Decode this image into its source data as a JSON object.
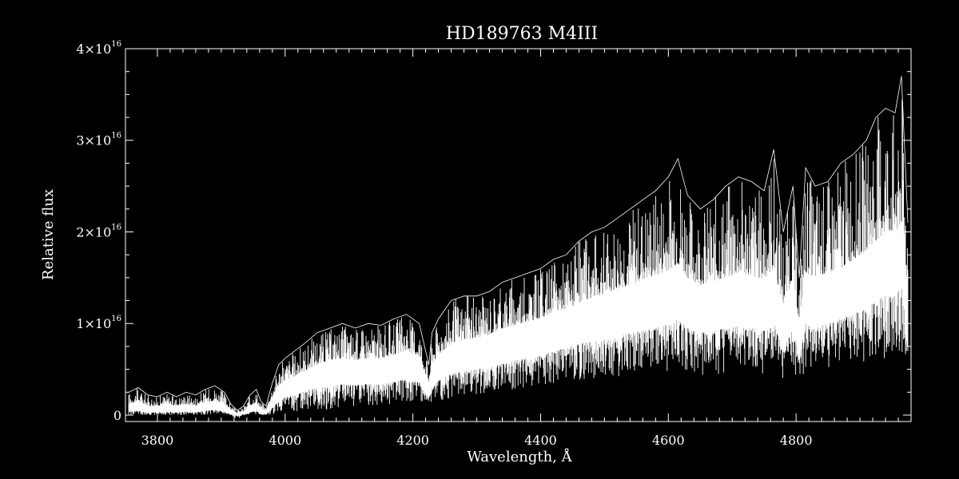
{
  "chart_data": {
    "type": "line",
    "title": "HD189763   M4III",
    "xlabel": "Wavelength, Å",
    "ylabel": "Relative flux",
    "xlim": [
      3750,
      4980
    ],
    "ylim": [
      -0.07,
      4.0
    ],
    "y_scale_note": "×10^16",
    "grid": false,
    "legend": "none",
    "line_color": "#ffffff",
    "background": "#000000",
    "x_ticks": [
      {
        "value": 3800,
        "label": "3800"
      },
      {
        "value": 4000,
        "label": "4000"
      },
      {
        "value": 4200,
        "label": "4200"
      },
      {
        "value": 4400,
        "label": "4400"
      },
      {
        "value": 4600,
        "label": "4600"
      },
      {
        "value": 4800,
        "label": "4800"
      }
    ],
    "y_ticks": [
      {
        "value": 0,
        "mant": "0",
        "exp": ""
      },
      {
        "value": 1,
        "mant": "1×10",
        "exp": "16"
      },
      {
        "value": 2,
        "mant": "2×10",
        "exp": "16"
      },
      {
        "value": 3,
        "mant": "3×10",
        "exp": "16"
      },
      {
        "value": 4,
        "mant": "4×10",
        "exp": "16"
      }
    ],
    "series": [
      {
        "x": [
          3755,
          3770,
          3785,
          3800,
          3815,
          3830,
          3845,
          3860,
          3875,
          3890,
          3905,
          3915,
          3925,
          3935,
          3945,
          3955,
          3962,
          3970,
          3980,
          3990,
          4000,
          4015,
          4030,
          4050,
          4070,
          4090,
          4110,
          4130,
          4150,
          4170,
          4190,
          4210,
          4225,
          4230,
          4240,
          4260,
          4280,
          4300,
          4320,
          4340,
          4360,
          4380,
          4400,
          4420,
          4440,
          4460,
          4480,
          4500,
          4520,
          4540,
          4560,
          4580,
          4600,
          4615,
          4630,
          4650,
          4670,
          4690,
          4710,
          4730,
          4750,
          4765,
          4780,
          4795,
          4805,
          4815,
          4830,
          4850,
          4870,
          4890,
          4910,
          4925,
          4940,
          4955,
          4965,
          4975
        ],
        "y_upper": [
          0.25,
          0.3,
          0.22,
          0.2,
          0.25,
          0.2,
          0.25,
          0.22,
          0.28,
          0.32,
          0.25,
          0.12,
          0.05,
          0.1,
          0.22,
          0.28,
          0.15,
          0.1,
          0.35,
          0.55,
          0.62,
          0.7,
          0.78,
          0.9,
          0.95,
          1.0,
          0.95,
          1.0,
          0.98,
          1.05,
          1.1,
          1.0,
          0.55,
          0.9,
          1.05,
          1.25,
          1.3,
          1.3,
          1.35,
          1.45,
          1.5,
          1.55,
          1.6,
          1.7,
          1.75,
          1.9,
          2.0,
          2.05,
          2.15,
          2.25,
          2.35,
          2.45,
          2.6,
          2.8,
          2.4,
          2.25,
          2.35,
          2.5,
          2.6,
          2.55,
          2.45,
          2.9,
          2.0,
          2.5,
          1.5,
          2.7,
          2.5,
          2.55,
          2.75,
          2.85,
          3.0,
          3.25,
          3.35,
          3.3,
          3.7,
          2.1
        ],
        "y_core_hi": [
          0.12,
          0.15,
          0.1,
          0.1,
          0.12,
          0.1,
          0.12,
          0.1,
          0.14,
          0.16,
          0.12,
          0.06,
          0.02,
          0.04,
          0.1,
          0.14,
          0.07,
          0.05,
          0.2,
          0.32,
          0.38,
          0.42,
          0.48,
          0.55,
          0.6,
          0.62,
          0.6,
          0.62,
          0.62,
          0.66,
          0.7,
          0.64,
          0.35,
          0.56,
          0.66,
          0.78,
          0.82,
          0.84,
          0.88,
          0.94,
          0.98,
          1.02,
          1.06,
          1.12,
          1.16,
          1.22,
          1.28,
          1.32,
          1.38,
          1.42,
          1.48,
          1.52,
          1.58,
          1.65,
          1.5,
          1.42,
          1.46,
          1.5,
          1.55,
          1.52,
          1.48,
          1.6,
          1.2,
          1.5,
          1.0,
          1.55,
          1.5,
          1.55,
          1.6,
          1.7,
          1.8,
          1.9,
          2.0,
          2.0,
          2.1,
          1.4
        ],
        "y_core_lo": [
          0.04,
          0.05,
          0.03,
          0.03,
          0.04,
          0.03,
          0.04,
          0.03,
          0.05,
          0.06,
          0.04,
          0.01,
          0.0,
          0.01,
          0.03,
          0.05,
          0.02,
          0.01,
          0.08,
          0.15,
          0.2,
          0.22,
          0.26,
          0.3,
          0.32,
          0.34,
          0.33,
          0.34,
          0.34,
          0.36,
          0.4,
          0.36,
          0.18,
          0.3,
          0.38,
          0.45,
          0.48,
          0.5,
          0.52,
          0.56,
          0.6,
          0.62,
          0.65,
          0.7,
          0.74,
          0.78,
          0.8,
          0.82,
          0.86,
          0.9,
          0.92,
          0.95,
          1.0,
          1.05,
          0.95,
          0.9,
          0.92,
          0.95,
          0.97,
          0.95,
          0.92,
          1.0,
          0.7,
          0.95,
          0.6,
          1.0,
          0.95,
          1.0,
          1.05,
          1.1,
          1.2,
          1.25,
          1.3,
          1.3,
          1.4,
          0.8
        ],
        "y_lower": [
          0.0,
          0.0,
          0.0,
          0.0,
          0.0,
          0.0,
          0.0,
          0.0,
          0.0,
          0.0,
          0.0,
          0.0,
          -0.05,
          0.0,
          0.0,
          0.0,
          0.0,
          0.0,
          0.0,
          0.02,
          0.03,
          0.04,
          0.05,
          0.05,
          0.06,
          0.07,
          0.08,
          0.09,
          0.1,
          0.12,
          0.14,
          0.15,
          0.08,
          0.12,
          0.15,
          0.18,
          0.2,
          0.22,
          0.24,
          0.26,
          0.28,
          0.3,
          0.32,
          0.35,
          0.36,
          0.38,
          0.4,
          0.4,
          0.42,
          0.44,
          0.45,
          0.46,
          0.48,
          0.5,
          0.45,
          0.42,
          0.44,
          0.46,
          0.48,
          0.47,
          0.45,
          0.5,
          0.35,
          0.46,
          0.3,
          0.5,
          0.5,
          0.5,
          0.52,
          0.55,
          0.58,
          0.6,
          0.62,
          0.6,
          0.65,
          0.45
        ]
      }
    ]
  }
}
